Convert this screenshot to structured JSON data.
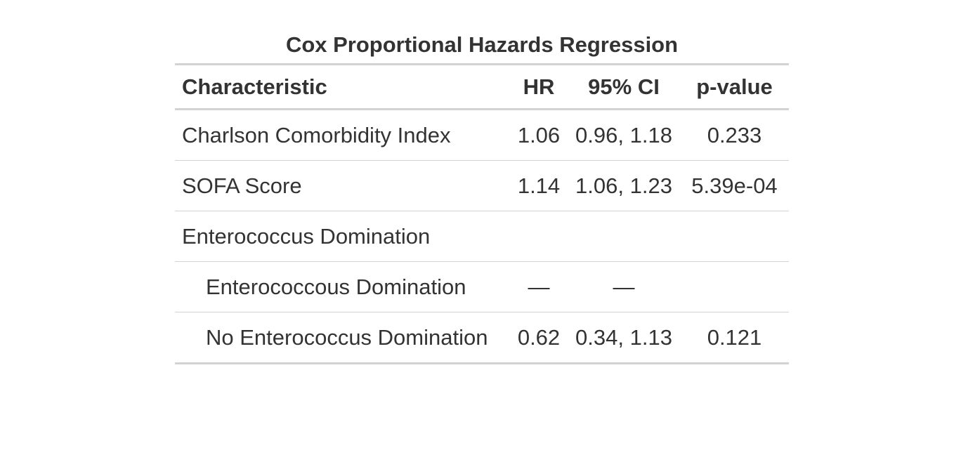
{
  "table": {
    "title": "Cox Proportional Hazards Regression",
    "headers": {
      "characteristic": "Characteristic",
      "hr": "HR",
      "ci": "95% CI",
      "p": "p-value"
    },
    "rows": [
      {
        "label": "Charlson Comorbidity Index",
        "hr": "1.06",
        "ci": "0.96, 1.18",
        "p": "0.233",
        "indent": false
      },
      {
        "label": "SOFA Score",
        "hr": "1.14",
        "ci": "1.06, 1.23",
        "p": "5.39e-04",
        "indent": false
      },
      {
        "label": "Enterococcus Domination",
        "hr": "",
        "ci": "",
        "p": "",
        "indent": false
      },
      {
        "label": "Enterococcous Domination",
        "hr": "—",
        "ci": "—",
        "p": "",
        "indent": true
      },
      {
        "label": "No Enterococcus Domination",
        "hr": "0.62",
        "ci": "0.34, 1.13",
        "p": "0.121",
        "indent": true
      }
    ]
  }
}
